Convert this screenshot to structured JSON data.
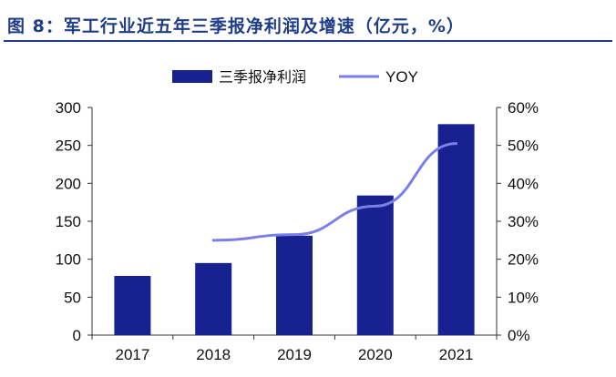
{
  "header": {
    "title": "图 8：军工行业近五年三季报净利润及增速（亿元，%）"
  },
  "colors": {
    "bar": "#17218F",
    "line": "#7B7FE8",
    "title": "#1F3C88",
    "axis": "#333333"
  },
  "chart_data": {
    "type": "bar",
    "categories": [
      "2017",
      "2018",
      "2019",
      "2020",
      "2021"
    ],
    "series": [
      {
        "name": "三季报净利润",
        "type": "bar",
        "axis": "left",
        "values": [
          78,
          95,
          131,
          184,
          278
        ]
      },
      {
        "name": "YOY",
        "type": "line",
        "axis": "right",
        "values": [
          null,
          25,
          26.5,
          34,
          50.5
        ]
      }
    ],
    "y_left": {
      "min": 0,
      "max": 300,
      "step": 50,
      "tick_labels": [
        "0",
        "50",
        "100",
        "150",
        "200",
        "250",
        "300"
      ]
    },
    "y_right": {
      "min": 0,
      "max": 60,
      "step": 10,
      "tick_labels": [
        "0%",
        "10%",
        "20%",
        "30%",
        "40%",
        "50%",
        "60%"
      ]
    },
    "grid": false,
    "legend_position": "top-center",
    "title": ""
  }
}
